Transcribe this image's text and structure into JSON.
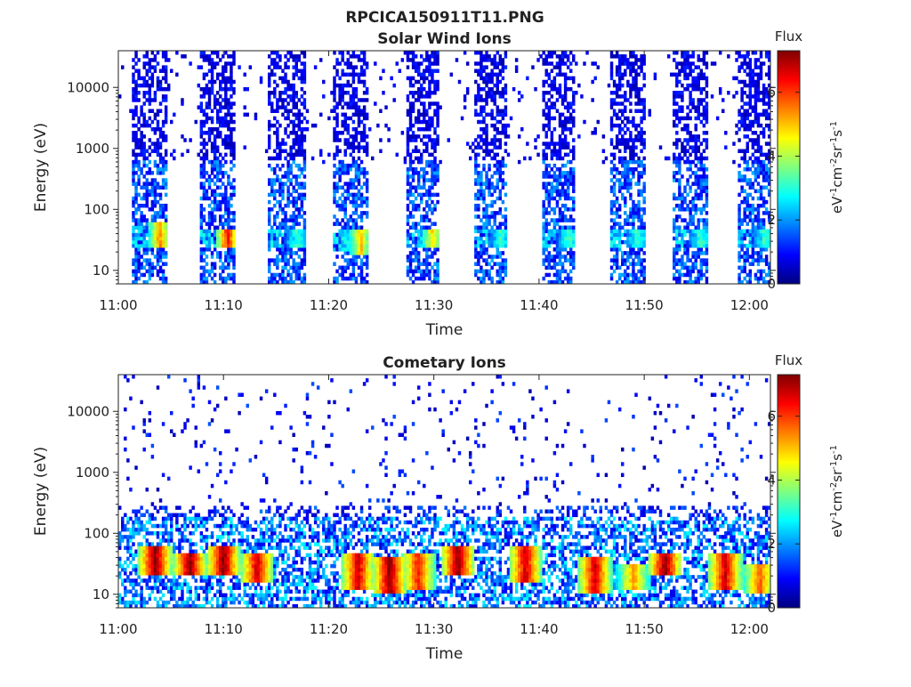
{
  "figure": {
    "filename_title": "RPCICA150911T11.PNG"
  },
  "colormap": {
    "name": "jet",
    "stops": [
      "#00007f",
      "#0000ff",
      "#007fff",
      "#00ffff",
      "#7fff7f",
      "#ffff00",
      "#ff7f00",
      "#ff0000",
      "#7f0000"
    ]
  },
  "chart_data": [
    {
      "type": "heatmap",
      "title": "Solar Wind Ions",
      "xlabel": "Time",
      "ylabel": "Energy (eV)",
      "x_ticks": [
        "11:00",
        "11:10",
        "11:20",
        "11:30",
        "11:40",
        "11:50",
        "12:00"
      ],
      "x_range_minutes": [
        0,
        62
      ],
      "y_scale": "log",
      "y_ticks": [
        "10",
        "100",
        "1000",
        "10000"
      ],
      "y_range": [
        6,
        40000
      ],
      "colorbar": {
        "label": "Flux",
        "units_base": "eV",
        "units_parts": [
          [
            "-1",
            "cm"
          ],
          [
            "-2",
            "sr"
          ],
          [
            "-1",
            "s"
          ],
          [
            "-1",
            ""
          ]
        ],
        "ticks": [
          "0",
          "2",
          "4",
          "6"
        ],
        "range": [
          0,
          7.3
        ]
      },
      "pattern": "periodic-bursts",
      "bursts": [
        {
          "start_min": 1.3,
          "end_min": 4.6,
          "high_flux_energy_eV": [
            25,
            60
          ],
          "peak_level": 5.0
        },
        {
          "start_min": 7.8,
          "end_min": 11.0,
          "high_flux_energy_eV": [
            25,
            45
          ],
          "peak_level": 6.0
        },
        {
          "start_min": 14.3,
          "end_min": 17.8,
          "high_flux_energy_eV": [
            25,
            45
          ],
          "peak_level": 2.8
        },
        {
          "start_min": 20.3,
          "end_min": 23.8,
          "high_flux_energy_eV": [
            18,
            45
          ],
          "peak_level": 4.6
        },
        {
          "start_min": 27.3,
          "end_min": 30.5,
          "high_flux_energy_eV": [
            25,
            45
          ],
          "peak_level": 4.4
        },
        {
          "start_min": 33.8,
          "end_min": 37.0,
          "high_flux_energy_eV": [
            25,
            45
          ],
          "peak_level": 2.8
        },
        {
          "start_min": 40.2,
          "end_min": 43.5,
          "high_flux_energy_eV": [
            25,
            45
          ],
          "peak_level": 2.8
        },
        {
          "start_min": 46.8,
          "end_min": 50.0,
          "high_flux_energy_eV": [
            25,
            45
          ],
          "peak_level": 2.8
        },
        {
          "start_min": 52.8,
          "end_min": 56.0,
          "high_flux_energy_eV": [
            25,
            45
          ],
          "peak_level": 2.8
        },
        {
          "start_min": 59.0,
          "end_min": 62.0,
          "high_flux_energy_eV": [
            25,
            45
          ],
          "peak_level": 2.8
        }
      ]
    },
    {
      "type": "heatmap",
      "title": "Cometary Ions",
      "xlabel": "Time",
      "ylabel": "Energy (eV)",
      "x_ticks": [
        "11:00",
        "11:10",
        "11:20",
        "11:30",
        "11:40",
        "11:50",
        "12:00"
      ],
      "x_range_minutes": [
        0,
        62
      ],
      "y_scale": "log",
      "y_ticks": [
        "10",
        "100",
        "1000",
        "10000"
      ],
      "y_range": [
        6,
        40000
      ],
      "colorbar": {
        "label": "Flux",
        "units_base": "eV",
        "units_parts": [
          [
            "-1",
            "cm"
          ],
          [
            "-2",
            "sr"
          ],
          [
            "-1",
            "s"
          ],
          [
            "-1",
            ""
          ]
        ],
        "ticks": [
          "0",
          "2",
          "4",
          "6"
        ],
        "range": [
          0,
          7.3
        ]
      },
      "pattern": "continuous-low-energy-band",
      "hotspots": [
        {
          "center_min": 3.5,
          "energy_eV": [
            20,
            60
          ],
          "peak_level": 7.0
        },
        {
          "center_min": 6.8,
          "energy_eV": [
            20,
            50
          ],
          "peak_level": 7.0
        },
        {
          "center_min": 10.0,
          "energy_eV": [
            20,
            60
          ],
          "peak_level": 7.0
        },
        {
          "center_min": 13.2,
          "energy_eV": [
            15,
            50
          ],
          "peak_level": 6.5
        },
        {
          "center_min": 22.8,
          "energy_eV": [
            12,
            50
          ],
          "peak_level": 6.5
        },
        {
          "center_min": 25.8,
          "energy_eV": [
            10,
            40
          ],
          "peak_level": 7.0
        },
        {
          "center_min": 28.5,
          "energy_eV": [
            12,
            45
          ],
          "peak_level": 6.0
        },
        {
          "center_min": 32.3,
          "energy_eV": [
            20,
            60
          ],
          "peak_level": 7.0
        },
        {
          "center_min": 38.7,
          "energy_eV": [
            15,
            60
          ],
          "peak_level": 6.5
        },
        {
          "center_min": 45.3,
          "energy_eV": [
            10,
            40
          ],
          "peak_level": 6.5
        },
        {
          "center_min": 49.0,
          "energy_eV": [
            12,
            30
          ],
          "peak_level": 5.0
        },
        {
          "center_min": 52.0,
          "energy_eV": [
            20,
            45
          ],
          "peak_level": 7.0
        },
        {
          "center_min": 57.7,
          "energy_eV": [
            12,
            45
          ],
          "peak_level": 6.5
        },
        {
          "center_min": 61.0,
          "energy_eV": [
            10,
            30
          ],
          "peak_level": 5.5
        }
      ]
    }
  ]
}
